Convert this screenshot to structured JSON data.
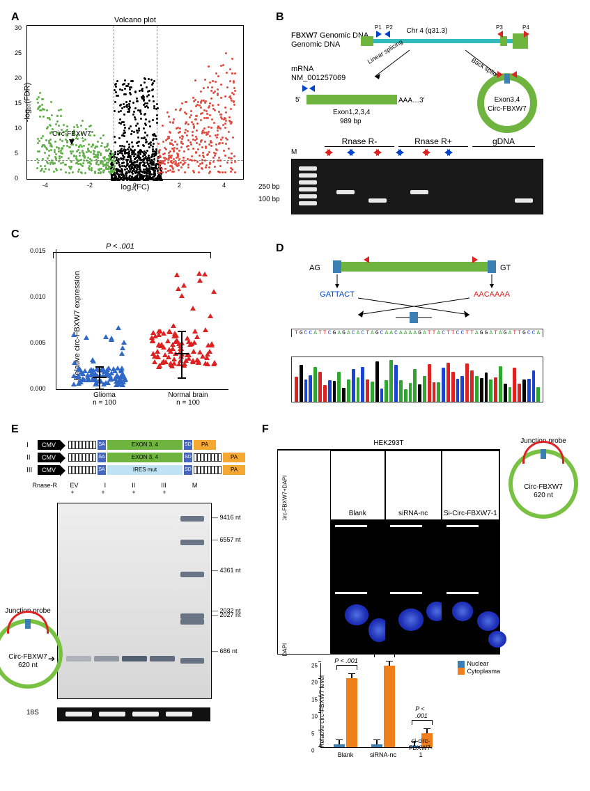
{
  "panels": {
    "A": "A",
    "B": "B",
    "C": "C",
    "D": "D",
    "E": "E",
    "F": "F"
  },
  "A": {
    "title": "Volcano plot",
    "xlabel": "log₂(FC)",
    "ylabel": "-log₁₀(FDR)",
    "annot": "Circ-FBXW7",
    "xlim": [
      -5,
      5
    ],
    "ylim": [
      0,
      30
    ],
    "xticks": [
      "-4",
      "-2",
      "0",
      "2",
      "4"
    ],
    "yticks": [
      "0",
      "5",
      "10",
      "15",
      "20",
      "25",
      "30"
    ],
    "colors": {
      "down": "#5fb247",
      "up": "#e34b3f",
      "ns": "#000000"
    }
  },
  "B": {
    "gene_label": "FBXW7\nGenomic DNA",
    "chr": "Chr 4 (q31.3)",
    "primers": [
      "P1",
      "P2",
      "P3",
      "P4"
    ],
    "mrna_label": "mRNA\nNM_001257069",
    "mrna_text": "Exon1,2,3,4",
    "mrna_len": "989 bp",
    "linear": "Linear splicing",
    "back": "Back splicing",
    "circ_text1": "Exon3,4",
    "circ_text2": "Circ-FBXW7",
    "aaa": "AAA…3'",
    "five": "5'",
    "gel_groups": [
      "Rnase R-",
      "Rnase R+",
      "gDNA"
    ],
    "m": "M",
    "size_labels": [
      "250 bp",
      "100 bp"
    ]
  },
  "C": {
    "ylabel": "Relative circ-FBXW7 expression",
    "pval": "P < .001",
    "cats": [
      "Glioma",
      "Normal brain"
    ],
    "ns": [
      "n = 100",
      "n = 100"
    ],
    "yticks": [
      "0.000",
      "0.005",
      "0.010",
      "0.015"
    ],
    "colors": {
      "glioma": "#2f68c6",
      "normal": "#d22"
    }
  },
  "D": {
    "ag": "AG",
    "gt": "GT",
    "left_seq": "GATTACT",
    "right_seq": "AACAAAA",
    "sequence": "TGCCATTCGAGACACTAGCAACAAAAGATTACTTCCTTAGGATAGATTGCCA",
    "colors": {
      "A": "#31a531",
      "C": "#1b44d3",
      "G": "#050505",
      "T": "#d22"
    }
  },
  "E": {
    "roman": [
      "I",
      "II",
      "III"
    ],
    "cmv": "CMV",
    "sa": "SA",
    "sd": "SD",
    "pa": "PA",
    "exon": "EXON 3, 4",
    "ires": "IRES mut",
    "lane_head": [
      "EV",
      "I",
      "II",
      "III",
      "M"
    ],
    "rnase": "Rnase-R",
    "plus": "+",
    "sizes": [
      "9416 nt",
      "6557 nt",
      "4361 nt",
      "2032 nt",
      "2027 nt",
      "686 nt"
    ],
    "loading": "18S",
    "probe_label": "Junction probe",
    "circ1": "Circ-FBXW7",
    "circ2": "620 nt"
  },
  "F": {
    "cell": "HEK293T",
    "cols": [
      "Blank",
      "siRNA-nc",
      "Si-Circ-FBXW7-1"
    ],
    "row1": "Circ-FBXW7+DAPI",
    "row2": "DAPI",
    "probe_label": "Junction probe",
    "circ1": "Circ-FBXW7",
    "circ2": "620 nt",
    "bar": {
      "ylabel": "Relative circ-FBXW7 level",
      "yticks": [
        "0",
        "5",
        "10",
        "15",
        "20",
        "25"
      ],
      "ymax": 25,
      "cats": [
        "Blank",
        "siRNA-nc",
        "si-circ-FBXW7-1"
      ],
      "series": [
        "Nuclear",
        "Cytoplasma"
      ],
      "colors": {
        "Nuclear": "#3b7fb3",
        "Cytoplasma": "#ef7f1a"
      },
      "values": {
        "Nuclear": [
          0.9,
          0.9,
          0.4
        ],
        "Cytoplasma": [
          20.3,
          24.0,
          4.0
        ]
      },
      "pvals": [
        "P < .001",
        "P < .001",
        "P < .001"
      ]
    }
  }
}
